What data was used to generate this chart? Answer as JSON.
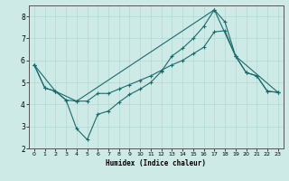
{
  "xlabel": "Humidex (Indice chaleur)",
  "ylabel": "",
  "xlim": [
    -0.5,
    23.5
  ],
  "ylim": [
    2,
    8.5
  ],
  "xticks": [
    0,
    1,
    2,
    3,
    4,
    5,
    6,
    7,
    8,
    9,
    10,
    11,
    12,
    13,
    14,
    15,
    16,
    17,
    18,
    19,
    20,
    21,
    22,
    23
  ],
  "yticks": [
    2,
    3,
    4,
    5,
    6,
    7,
    8
  ],
  "bg_color": "#ceeae7",
  "line_color": "#1a6b6b",
  "line1_x": [
    0,
    1,
    2,
    3,
    4,
    5,
    6,
    7,
    8,
    9,
    10,
    11,
    12,
    13,
    14,
    15,
    16,
    17,
    18,
    19,
    20,
    21,
    22,
    23
  ],
  "line1_y": [
    5.8,
    4.75,
    4.6,
    4.2,
    2.9,
    2.4,
    3.55,
    3.7,
    4.1,
    4.45,
    4.7,
    5.0,
    5.5,
    6.2,
    6.55,
    7.0,
    7.55,
    8.3,
    7.75,
    6.2,
    5.45,
    5.3,
    4.6,
    4.55
  ],
  "line2_x": [
    0,
    1,
    2,
    3,
    4,
    5,
    6,
    7,
    8,
    9,
    10,
    11,
    12,
    13,
    14,
    15,
    16,
    17,
    18,
    19,
    20,
    21,
    22,
    23
  ],
  "line2_y": [
    5.8,
    4.75,
    4.6,
    4.2,
    4.15,
    4.15,
    4.5,
    4.5,
    4.7,
    4.9,
    5.1,
    5.3,
    5.55,
    5.8,
    6.0,
    6.3,
    6.6,
    7.3,
    7.35,
    6.2,
    5.45,
    5.3,
    4.6,
    4.55
  ],
  "line3_x": [
    0,
    2,
    4,
    17,
    19,
    23
  ],
  "line3_y": [
    5.8,
    4.6,
    4.15,
    8.3,
    6.2,
    4.55
  ]
}
